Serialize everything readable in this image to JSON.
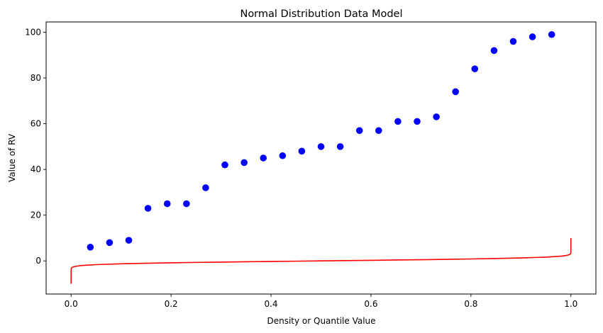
{
  "chart_data": {
    "type": "scatter",
    "title": "Normal Distribution Data Model",
    "xlabel": "Density or Quantile Value",
    "ylabel": "Value of RV",
    "xlim": [
      -0.05,
      1.05
    ],
    "ylim": [
      -14.5,
      104.5
    ],
    "x_ticks": [
      0.0,
      0.2,
      0.4,
      0.6,
      0.8,
      1.0
    ],
    "x_tick_labels": [
      "0.0",
      "0.2",
      "0.4",
      "0.6",
      "0.8",
      "1.0"
    ],
    "y_ticks": [
      0,
      20,
      40,
      60,
      80,
      100
    ],
    "y_tick_labels": [
      "0",
      "20",
      "40",
      "60",
      "80",
      "100"
    ],
    "grid": false,
    "legend": null,
    "series": [
      {
        "type": "scatter",
        "color": "#0000ff",
        "x": [
          0.0385,
          0.0769,
          0.1154,
          0.1538,
          0.1923,
          0.2308,
          0.2692,
          0.3077,
          0.3462,
          0.3846,
          0.4231,
          0.4615,
          0.5,
          0.5385,
          0.5769,
          0.6154,
          0.6538,
          0.6923,
          0.7308,
          0.7692,
          0.8077,
          0.8462,
          0.8846,
          0.9231,
          0.9615
        ],
        "y": [
          6,
          8,
          9,
          23,
          25,
          25,
          32,
          42,
          43,
          45,
          46,
          48,
          50,
          50,
          57,
          57,
          61,
          61,
          63,
          74,
          84,
          92,
          96,
          98,
          99
        ]
      },
      {
        "type": "line",
        "color": "#ff0000",
        "x": [
          0.0,
          0.0001,
          0.0005,
          0.001,
          0.002,
          0.005,
          0.01,
          0.02,
          0.05,
          0.1,
          0.15,
          0.2,
          0.25,
          0.3,
          0.35,
          0.4,
          0.45,
          0.5,
          0.55,
          0.6,
          0.65,
          0.7,
          0.75,
          0.8,
          0.85,
          0.9,
          0.95,
          0.98,
          0.99,
          0.995,
          0.998,
          0.999,
          0.9995,
          0.9999,
          1.0
        ],
        "y": [
          -10,
          -3.72,
          -3.29,
          -3.09,
          -2.88,
          -2.58,
          -2.33,
          -2.05,
          -1.64,
          -1.28,
          -1.04,
          -0.84,
          -0.67,
          -0.52,
          -0.39,
          -0.25,
          -0.13,
          0.0,
          0.13,
          0.25,
          0.39,
          0.52,
          0.67,
          0.84,
          1.04,
          1.28,
          1.64,
          2.05,
          2.33,
          2.58,
          2.88,
          3.09,
          3.29,
          3.72,
          10
        ]
      }
    ]
  }
}
